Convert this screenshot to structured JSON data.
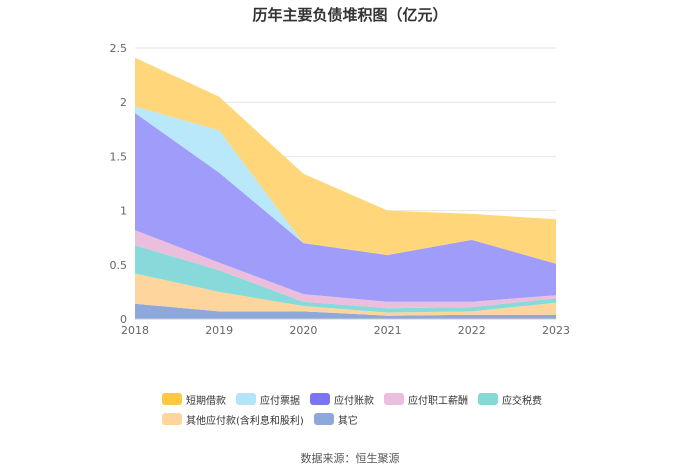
{
  "chart_data": {
    "type": "area",
    "stacked": true,
    "title": "历年主要负债堆积图（亿元）",
    "x": [
      "2018",
      "2019",
      "2020",
      "2021",
      "2022",
      "2023"
    ],
    "y_ticks": [
      "0",
      "0.5",
      "1",
      "1.5",
      "2",
      "2.5"
    ],
    "ylim": [
      0,
      2.5
    ],
    "series": [
      {
        "name": "其它",
        "color": "#8fa8dc",
        "values": [
          0.14,
          0.07,
          0.07,
          0.03,
          0.04,
          0.04
        ]
      },
      {
        "name": "其他应付款(含利息和股利)",
        "color": "#ffd59e",
        "values": [
          0.28,
          0.18,
          0.05,
          0.03,
          0.03,
          0.11
        ]
      },
      {
        "name": "应交税费",
        "color": "#88dada",
        "values": [
          0.26,
          0.2,
          0.04,
          0.04,
          0.04,
          0.04
        ]
      },
      {
        "name": "应付职工薪酬",
        "color": "#ebbedd",
        "values": [
          0.14,
          0.07,
          0.07,
          0.06,
          0.05,
          0.03
        ]
      },
      {
        "name": "应付账款",
        "color": "#9f9cfa",
        "values": [
          1.08,
          0.83,
          0.47,
          0.43,
          0.57,
          0.29
        ]
      },
      {
        "name": "应付票据",
        "color": "#b9e8fb",
        "values": [
          0.06,
          0.39,
          0.0,
          0.0,
          0.0,
          0.0
        ]
      },
      {
        "name": "短期借款",
        "color": "#ffd679",
        "values": [
          0.45,
          0.31,
          0.64,
          0.41,
          0.24,
          0.41
        ]
      }
    ]
  },
  "legend": {
    "row1": [
      {
        "label": "短期借款",
        "color": "#ffc842"
      },
      {
        "label": "应付票据",
        "color": "#b3e4fa"
      },
      {
        "label": "应付账款",
        "color": "#7b74f5"
      },
      {
        "label": "应付职工薪酬",
        "color": "#ebbede"
      },
      {
        "label": "应交税费",
        "color": "#86d8d6"
      }
    ],
    "row2": [
      {
        "label": "其他应付款(含利息和股利)",
        "color": "#ffd59e"
      },
      {
        "label": "其它",
        "color": "#8fa8dc"
      }
    ]
  },
  "source": "数据来源：恒生聚源"
}
